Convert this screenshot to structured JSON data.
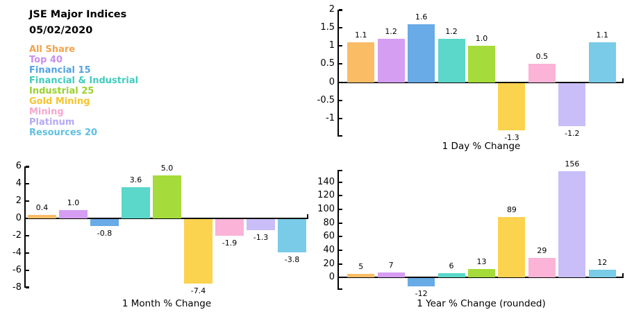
{
  "header": {
    "title": "JSE Major Indices",
    "date": "05/02/2020"
  },
  "legend": {
    "position": "top-left",
    "items": [
      {
        "label": "All Share",
        "color": "#F2A44C"
      },
      {
        "label": "Top 40",
        "color": "#C98FEE"
      },
      {
        "label": "Financial 15",
        "color": "#55A3E2"
      },
      {
        "label": "Financial & Industrial",
        "color": "#40CCBD"
      },
      {
        "label": "Industrial 25",
        "color": "#9AD22B"
      },
      {
        "label": "Gold Mining",
        "color": "#F5C52F"
      },
      {
        "label": "Mining",
        "color": "#F8A6CE"
      },
      {
        "label": "Platinum",
        "color": "#B5AAF3"
      },
      {
        "label": "Resources 20",
        "color": "#5FC0E1"
      }
    ]
  },
  "bar_colors": [
    "#FBBC66",
    "#D59EF2",
    "#68ABE6",
    "#5BD8CA",
    "#A5DB3A",
    "#FCD34F",
    "#FBB3D7",
    "#C9BEF8",
    "#79CBE8"
  ],
  "chart_data": [
    {
      "type": "bar",
      "title": "1 Day % Change",
      "categories": [
        "All Share",
        "Top 40",
        "Financial 15",
        "Financial & Industrial",
        "Industrial 25",
        "Gold Mining",
        "Mining",
        "Platinum",
        "Resources 20"
      ],
      "values": [
        1.1,
        1.2,
        1.6,
        1.2,
        1.0,
        -1.3,
        0.5,
        -1.2,
        1.1
      ],
      "value_labels": [
        "1.1",
        "1.2",
        "1.6",
        "1.2",
        "1.0",
        "-1.3",
        "0.5",
        "-1.2",
        "1.1"
      ],
      "ylim": [
        -1.5,
        2
      ],
      "yticks": [
        2,
        1.5,
        1,
        0.5,
        0,
        -0.5,
        -1
      ],
      "ytick_labels": [
        "2",
        "1.5",
        "1",
        "0.5",
        "0",
        "-0.5",
        "-1"
      ],
      "grid": false,
      "legend_position": "none"
    },
    {
      "type": "bar",
      "title": "1 Month % Change",
      "categories": [
        "All Share",
        "Top 40",
        "Financial 15",
        "Financial & Industrial",
        "Industrial 25",
        "Gold Mining",
        "Mining",
        "Platinum",
        "Resources 20"
      ],
      "values": [
        0.4,
        1.0,
        -0.8,
        3.6,
        5.0,
        -7.4,
        -1.9,
        -1.3,
        -3.8
      ],
      "value_labels": [
        "0.4",
        "1.0",
        "-0.8",
        "3.6",
        "5.0",
        "-7.4",
        "-1.9",
        "-1.3",
        "-3.8"
      ],
      "ylim": [
        -8,
        6
      ],
      "yticks": [
        6,
        4,
        2,
        0,
        -2,
        -4,
        -6,
        -8
      ],
      "ytick_labels": [
        "6",
        "4",
        "2",
        "0",
        "-2",
        "-4",
        "-6",
        "-8"
      ],
      "grid": false,
      "legend_position": "none"
    },
    {
      "type": "bar",
      "title": "1 Year % Change (rounded)",
      "categories": [
        "All Share",
        "Top 40",
        "Financial 15",
        "Financial & Industrial",
        "Industrial 25",
        "Gold Mining",
        "Mining",
        "Platinum",
        "Resources 20"
      ],
      "values": [
        5,
        7,
        -12,
        6,
        13,
        89,
        29,
        156,
        12
      ],
      "value_labels": [
        "5",
        "7",
        "-12",
        "6",
        "13",
        "89",
        "29",
        "156",
        "12"
      ],
      "ylim": [
        -18,
        158
      ],
      "yticks": [
        140,
        120,
        100,
        80,
        60,
        40,
        20,
        0
      ],
      "ytick_labels": [
        "140",
        "120",
        "100",
        "80",
        "60",
        "40",
        "20",
        "0"
      ],
      "grid": false,
      "legend_position": "none"
    }
  ]
}
